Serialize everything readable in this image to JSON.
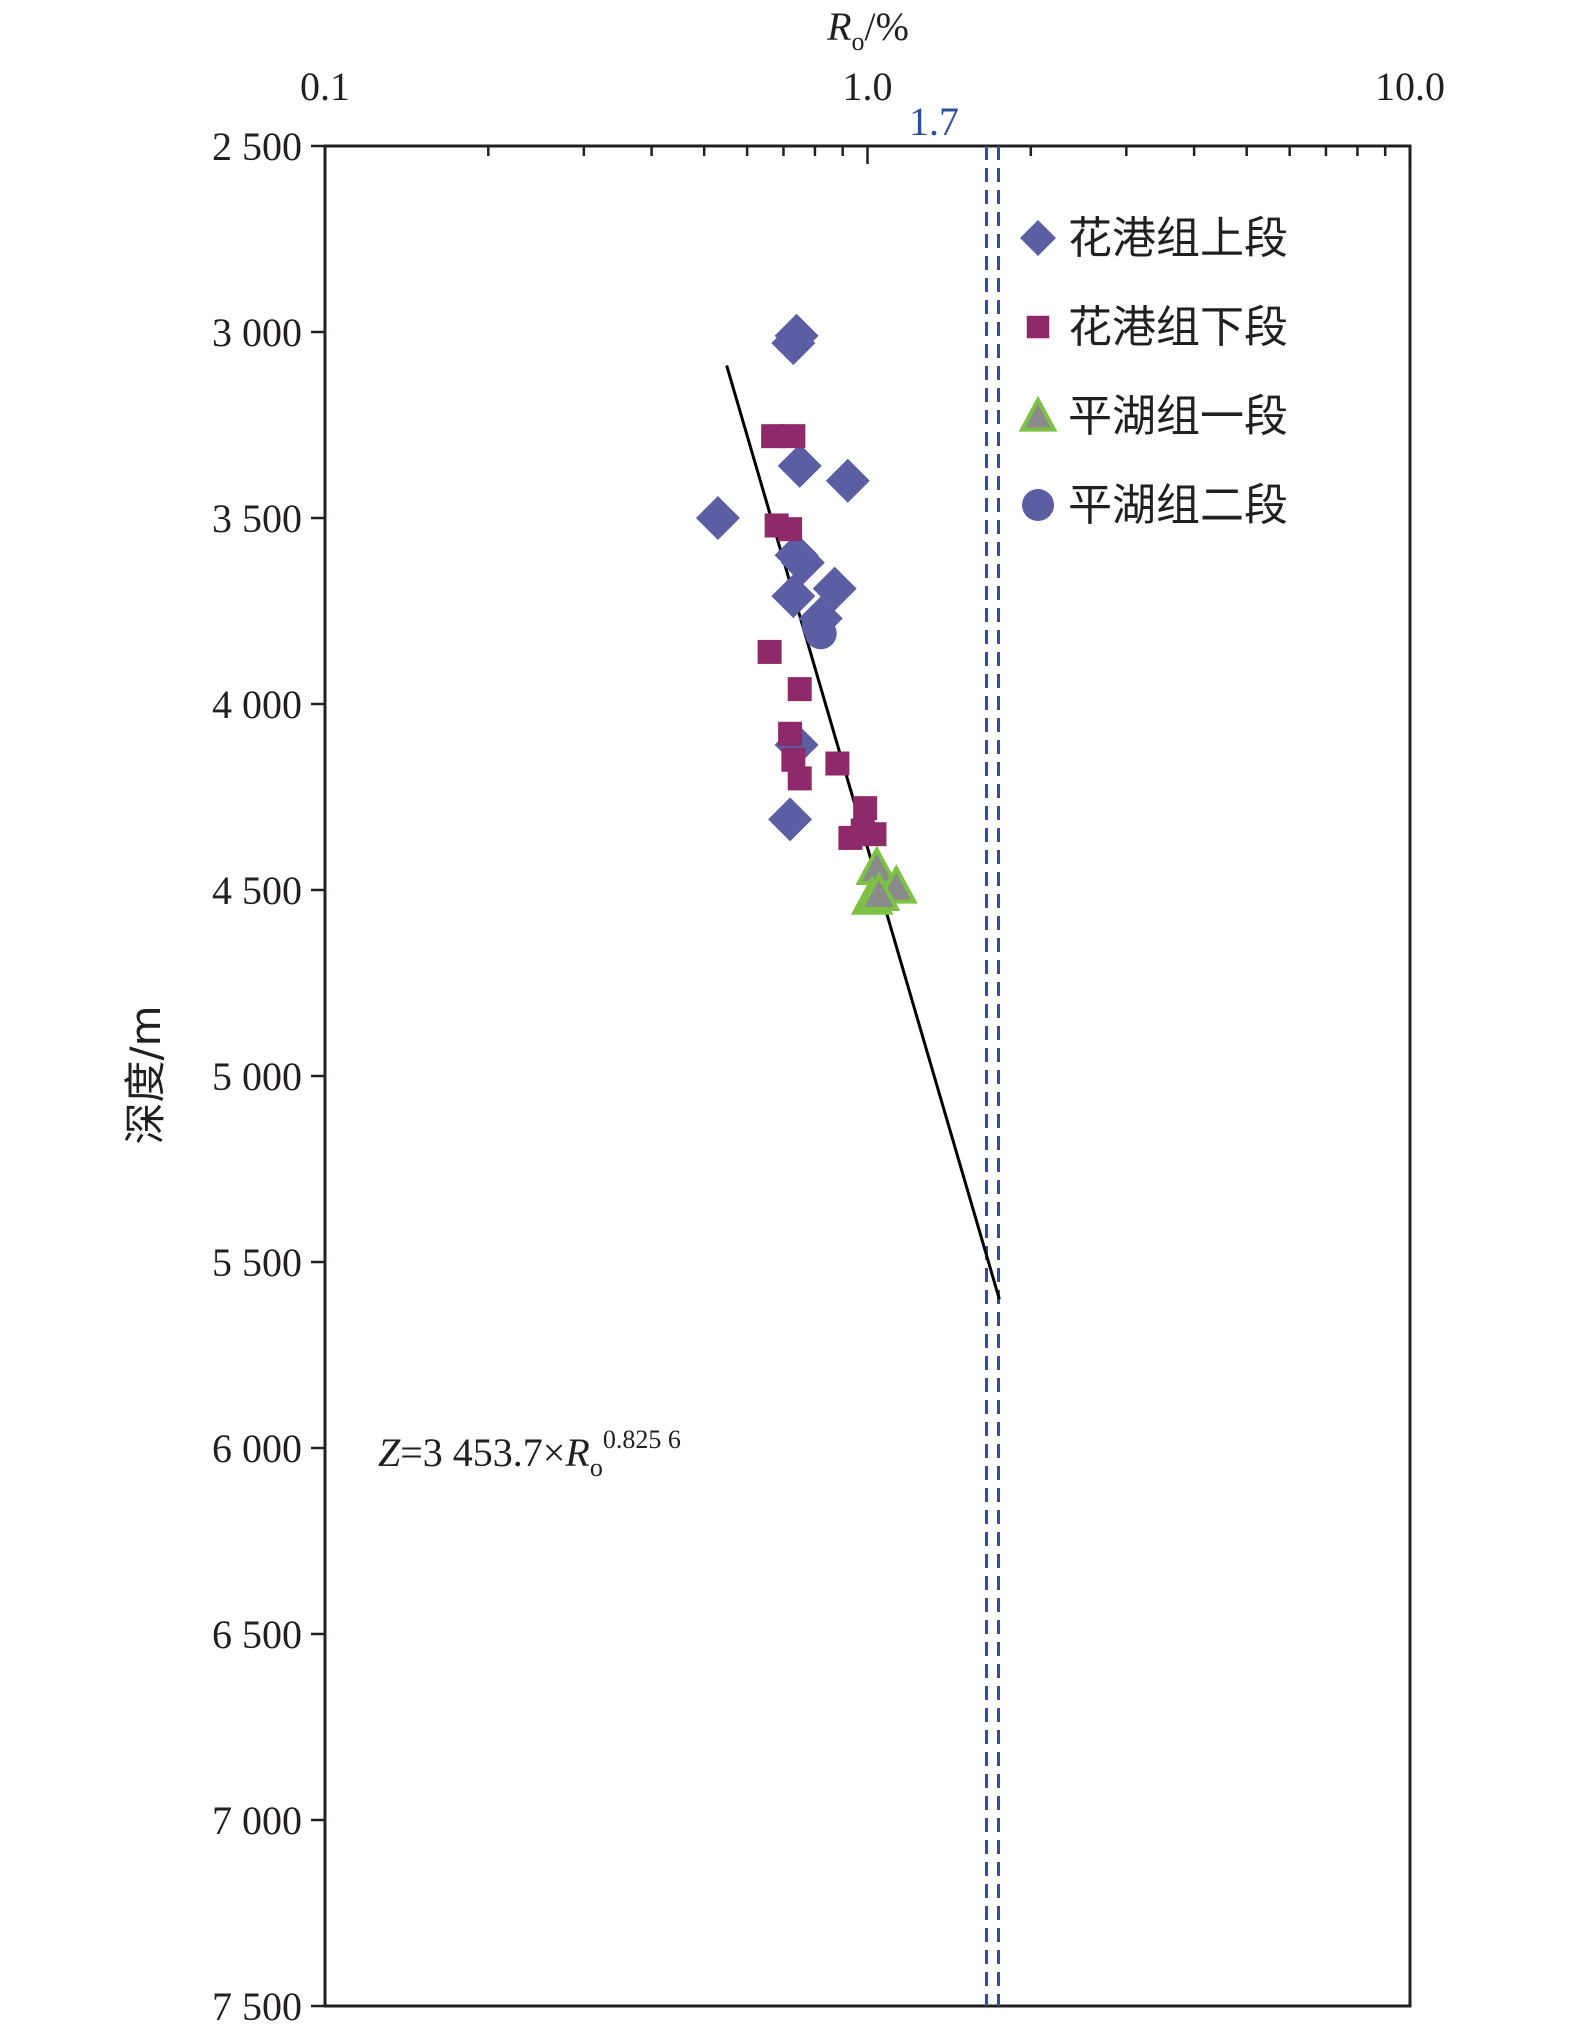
{
  "chart_data": {
    "type": "scatter",
    "title": "",
    "xlabel": {
      "main": "R",
      "sub": "o",
      "unit": "/%"
    },
    "ylabel": "深度/m",
    "x_scale": "log",
    "xlim": [
      0.1,
      10.0
    ],
    "ylim": [
      2500,
      7500
    ],
    "y_inverted": true,
    "x_axis_position": "top",
    "x_ticks": [
      0.1,
      1.0,
      10.0
    ],
    "x_tick_labels": [
      "0.1",
      "1.0",
      "10.0"
    ],
    "y_ticks": [
      2500,
      3000,
      3500,
      4000,
      4500,
      5000,
      5500,
      6000,
      6500,
      7000,
      7500
    ],
    "y_tick_labels": [
      "2 500",
      "3 000",
      "3 500",
      "4 000",
      "4 500",
      "5 000",
      "5 500",
      "6 000",
      "6 500",
      "7 000",
      "7 500"
    ],
    "grid": false,
    "legend_position": "top-right",
    "threshold_line": {
      "x": 1.7,
      "label": "1.7",
      "color": "#2e4f9e",
      "style": "double-dashed"
    },
    "fit_line": {
      "equation": {
        "lhs": "Z",
        "eq": "=3 453.7×",
        "var": "R",
        "sub": "o",
        "exp": "0.825 6"
      },
      "points": [
        [
          0.55,
          3090
        ],
        [
          1.75,
          5600
        ]
      ],
      "color": "#000000"
    },
    "series": [
      {
        "name": "花港组上段",
        "marker": "diamond",
        "color": "#5c5ea4",
        "points": [
          [
            0.73,
            3030
          ],
          [
            0.74,
            3010
          ],
          [
            0.75,
            3360
          ],
          [
            0.92,
            3400
          ],
          [
            0.53,
            3500
          ],
          [
            0.74,
            3600
          ],
          [
            0.76,
            3620
          ],
          [
            0.73,
            3710
          ],
          [
            0.87,
            3690
          ],
          [
            0.82,
            3770
          ],
          [
            0.74,
            4110
          ],
          [
            0.72,
            4310
          ]
        ]
      },
      {
        "name": "花港组下段",
        "marker": "square",
        "color": "#8e2a6a",
        "points": [
          [
            0.67,
            3280
          ],
          [
            0.73,
            3280
          ],
          [
            0.68,
            3520
          ],
          [
            0.72,
            3530
          ],
          [
            0.66,
            3860
          ],
          [
            0.75,
            3960
          ],
          [
            0.72,
            4080
          ],
          [
            0.73,
            4150
          ],
          [
            0.75,
            4200
          ],
          [
            0.88,
            4160
          ],
          [
            0.99,
            4280
          ],
          [
            0.98,
            4340
          ],
          [
            1.03,
            4350
          ],
          [
            0.93,
            4360
          ]
        ]
      },
      {
        "name": "平湖组一段",
        "marker": "triangle",
        "color": "#8b8b8b",
        "stroke": "#7dc242",
        "points": [
          [
            1.04,
            4440
          ],
          [
            1.13,
            4490
          ],
          [
            1.02,
            4520
          ],
          [
            1.05,
            4510
          ]
        ]
      },
      {
        "name": "平湖组二段",
        "marker": "circle",
        "color": "#5c5ea4",
        "points": [
          [
            0.81,
            3790
          ],
          [
            0.82,
            3810
          ]
        ]
      }
    ]
  }
}
